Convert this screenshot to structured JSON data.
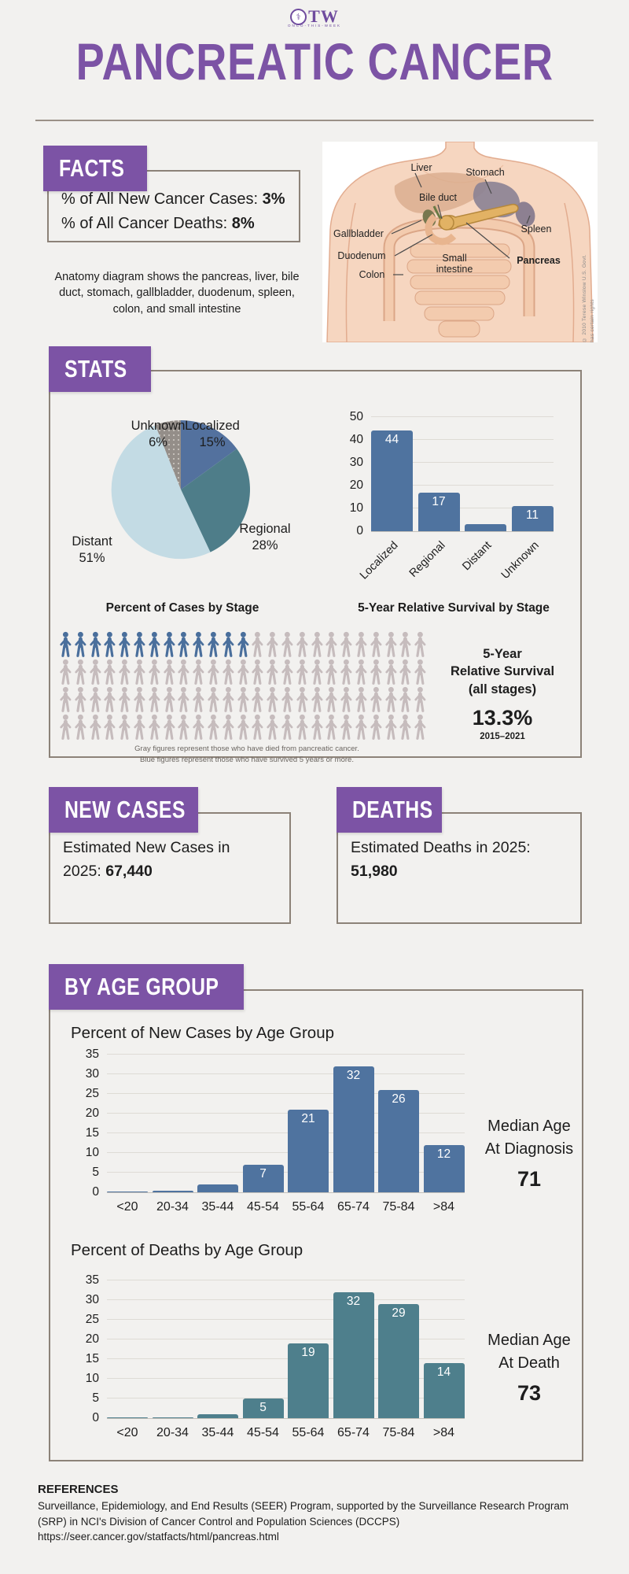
{
  "logo": {
    "badge": "staff-of-asclepius",
    "text": "TW",
    "subtext": "ONCO-THIS-WEEK"
  },
  "title": "PANCREATIC CANCER",
  "facts": {
    "header": "FACTS",
    "lines": [
      {
        "label": "% of All New Cancer Cases: ",
        "value": "3%"
      },
      {
        "label": "% of All Cancer Deaths: ",
        "value": "8%"
      }
    ],
    "caption": "Anatomy diagram shows the pancreas, liver, bile duct, stomach, gallbladder, duodenum, spleen, colon, and small intestine"
  },
  "anatomy": {
    "labels": [
      "Liver",
      "Stomach",
      "Bile duct",
      "Gallbladder",
      "Duodenum",
      "Colon",
      "Small intestine",
      "Spleen",
      "Pancreas"
    ],
    "credit": "© 2010 Terese Winslow U.S. Govt. has certain rights"
  },
  "stats": {
    "header": "STATS",
    "pictogram": {
      "total": 100,
      "per_row": 25,
      "survivor_count": 13,
      "survivor_color": "#4a6f9c",
      "deceased_color": "#c6bcbd",
      "caption_line1": "Gray figures represent those who have died from pancreatic cancer.",
      "caption_line2": "Blue figures represent those who have survived 5 years or more."
    },
    "survival_summary": {
      "line1": "5-Year",
      "line2": "Relative Survival",
      "line3": "(all stages)",
      "value": "13.3%",
      "period": "2015–2021"
    }
  },
  "new_cases": {
    "header": "NEW CASES",
    "label": "Estimated New Cases in 2025: ",
    "value": "67,440"
  },
  "deaths": {
    "header": "DEATHS",
    "label": "Estimated Deaths in 2025: ",
    "value": "51,980"
  },
  "by_age": {
    "header": "BY AGE GROUP",
    "diagnosis_median": {
      "line1": "Median Age",
      "line2": "At Diagnosis",
      "value": "71"
    },
    "death_median": {
      "line1": "Median Age",
      "line2": "At Death",
      "value": "73"
    }
  },
  "references": {
    "header": "REFERENCES",
    "line1": "Surveillance, Epidemiology, and End Results (SEER) Program, supported by the Surveillance Research Program (SRP) in NCI's Division of Cancer Control and Population Sciences (DCCPS)",
    "line2": "https://seer.cancer.gov/statfacts/html/pancreas.html"
  },
  "colors": {
    "accent_purple": "#7c53a5",
    "box_border": "#8c8278",
    "steel_blue": "#4f739f",
    "teal": "#4e7f8c",
    "light_blue": "#c3dbe4",
    "gray": "#948e89",
    "background": "#f2f1ef"
  },
  "chart_data": [
    {
      "id": "cases_by_stage",
      "type": "pie",
      "title": "Percent of Cases by Stage",
      "labels": [
        "Localized",
        "Regional",
        "Distant",
        "Unknown"
      ],
      "values": [
        15,
        28,
        51,
        6
      ],
      "colors": [
        "#53719e",
        "#4e7d89",
        "#c3dbe4",
        "#948e89"
      ],
      "texture": [
        "solid",
        "solid",
        "solid",
        "dots"
      ],
      "start_angle": "12 o'clock, clockwise"
    },
    {
      "id": "survival_by_stage",
      "type": "bar",
      "title": "5-Year Relative Survival by Stage",
      "categories": [
        "Localized",
        "Regional",
        "Distant",
        "Unknown"
      ],
      "values": [
        44,
        17,
        3,
        11
      ],
      "bar_labels": [
        "44",
        "17",
        "",
        "11"
      ],
      "ylim": [
        0,
        50
      ],
      "ytick_step": 10,
      "color": "#4f739f",
      "grid": true,
      "xlabel_rotation": 45
    },
    {
      "id": "new_cases_by_age",
      "type": "bar",
      "title": "Percent of New Cases by Age Group",
      "categories": [
        "<20",
        "20-34",
        "35-44",
        "45-54",
        "55-64",
        "65-74",
        "75-84",
        ">84"
      ],
      "values": [
        0.1,
        0.5,
        2,
        7,
        21,
        32,
        26,
        12
      ],
      "bar_labels": [
        "",
        "",
        "",
        "7",
        "21",
        "32",
        "26",
        "12"
      ],
      "ylim": [
        0,
        35
      ],
      "ytick_step": 5,
      "color": "#4f739f",
      "grid": true
    },
    {
      "id": "deaths_by_age",
      "type": "bar",
      "title": "Percent of Deaths by Age Group",
      "categories": [
        "<20",
        "20-34",
        "35-44",
        "45-54",
        "55-64",
        "65-74",
        "75-84",
        ">84"
      ],
      "values": [
        0,
        0.1,
        1,
        5,
        19,
        32,
        29,
        14
      ],
      "bar_labels": [
        "",
        "",
        "",
        "5",
        "19",
        "32",
        "29",
        "14"
      ],
      "ylim": [
        0,
        35
      ],
      "ytick_step": 5,
      "color": "#4e7f8c",
      "grid": true
    }
  ]
}
